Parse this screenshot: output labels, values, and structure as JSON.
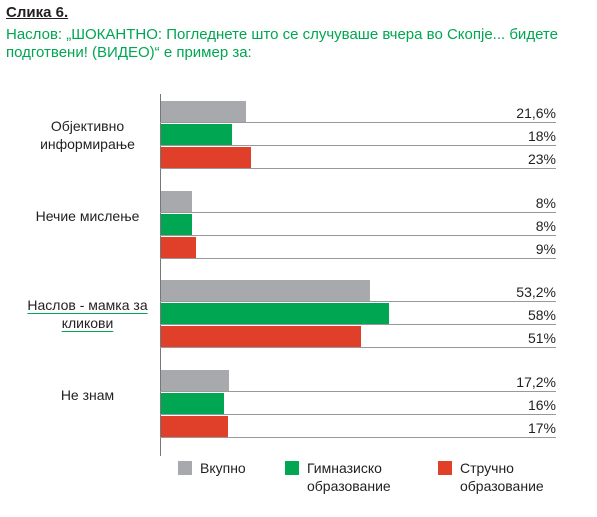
{
  "chart_data": {
    "type": "bar",
    "orientation": "horizontal",
    "title": "Слика 6.",
    "subtitle": "Наслов: „ШОКАНТНО: Погледнете што се случуваше вчера во Скопје... бидете подготвени! (ВИДЕО)“ е пример за:",
    "categories": [
      "Објективно информирање",
      "Нечие мислење",
      "Наслов - мамка за кликови",
      "Не знам"
    ],
    "series": [
      {
        "name": "Вкупно",
        "color": "#a7a9ac",
        "values": [
          21.6,
          8,
          53.2,
          17.2
        ],
        "value_labels": [
          "21,6%",
          "8%",
          "53,2%",
          "17,2%"
        ]
      },
      {
        "name": "Гимназиско образование",
        "color": "#00a651",
        "values": [
          18,
          8,
          58,
          16
        ],
        "value_labels": [
          "18%",
          "8%",
          "58%",
          "16%"
        ]
      },
      {
        "name": "Стручно образование",
        "color": "#e0402a",
        "values": [
          23,
          9,
          51,
          17
        ],
        "value_labels": [
          "23%",
          "9%",
          "51%",
          "17%"
        ]
      }
    ]
  }
}
